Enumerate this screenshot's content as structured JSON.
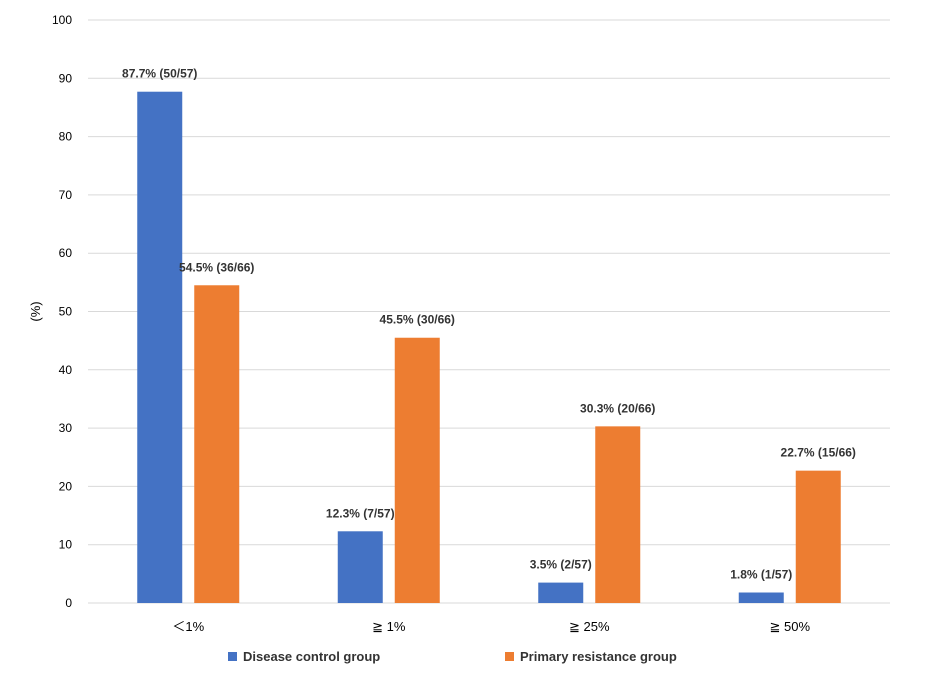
{
  "chart_data": {
    "type": "bar",
    "categories": [
      "＜1%",
      "≧ 1%",
      "≧ 25%",
      "≧ 50%"
    ],
    "series": [
      {
        "name": "Disease control group",
        "color": "#4472c4",
        "values": [
          87.7,
          12.3,
          3.5,
          1.8
        ],
        "labels": [
          "87.7% (50/57)",
          "12.3% (7/57)",
          "3.5% (2/57)",
          "1.8% (1/57)"
        ]
      },
      {
        "name": "Primary resistance group",
        "color": "#ed7d31",
        "values": [
          54.5,
          45.5,
          30.3,
          22.7
        ],
        "labels": [
          "54.5% (36/66)",
          "45.5% (30/66)",
          "30.3% (20/66)",
          "22.7% (15/66)"
        ]
      }
    ],
    "ylabel": "(%)",
    "xlabel": "",
    "ylim": [
      0,
      100
    ],
    "yticks": [
      0,
      10,
      20,
      30,
      40,
      50,
      60,
      70,
      80,
      90,
      100
    ],
    "grid": true,
    "legend_position": "bottom"
  }
}
